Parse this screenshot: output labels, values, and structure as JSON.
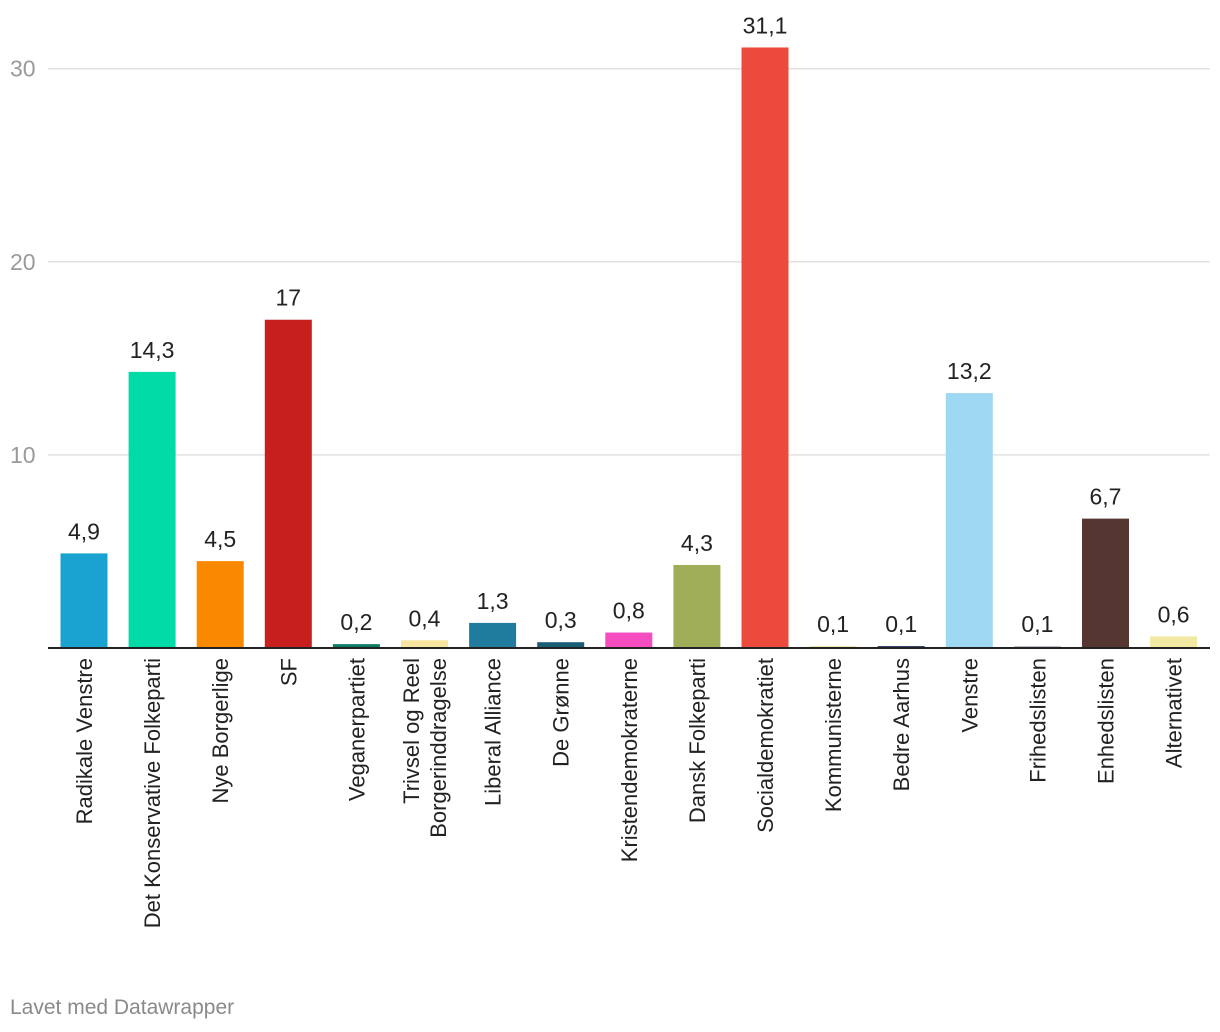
{
  "chart_data": {
    "type": "bar",
    "categories": [
      "Radikale Venstre",
      "Det Konservative Folkeparti",
      "Nye Borgerlige",
      "SF",
      "Veganerpartiet",
      [
        "Trivsel og Reel",
        "Borgerinddragelse"
      ],
      "Liberal Alliance",
      "De Grønne",
      "Kristendemokraterne",
      "Dansk Folkeparti",
      "Socialdemokratiet",
      "Kommunisterne",
      "Bedre Aarhus",
      "Venstre",
      "Frihedslisten",
      "Enhedslisten",
      "Alternativet"
    ],
    "values": [
      4.9,
      14.3,
      4.5,
      17,
      0.2,
      0.4,
      1.3,
      0.3,
      0.8,
      4.3,
      31.1,
      0.1,
      0.1,
      13.2,
      0.1,
      6.7,
      0.6
    ],
    "value_labels": [
      "4,9",
      "14,3",
      "4,5",
      "17",
      "0,2",
      "0,4",
      "1,3",
      "0,3",
      "0,8",
      "4,3",
      "31,1",
      "0,1",
      "0,1",
      "13,2",
      "0,1",
      "6,7",
      "0,6"
    ],
    "colors": [
      "#1aa3d0",
      "#00dba8",
      "#f98a00",
      "#c71e1e",
      "#0d7b63",
      "#f8e6a0",
      "#1f7c9e",
      "#195e75",
      "#f54dbf",
      "#a0ad58",
      "#ed4a3e",
      "#f2e4a0",
      "#2b3560",
      "#9ed8f2",
      "#b8bfc8",
      "#553630",
      "#f2eaa2"
    ],
    "ylim": [
      0,
      31.1
    ],
    "yticks": [
      10,
      20,
      30
    ],
    "grid": true,
    "xlabel": "",
    "ylabel": ""
  },
  "credit": "Lavet med Datawrapper"
}
